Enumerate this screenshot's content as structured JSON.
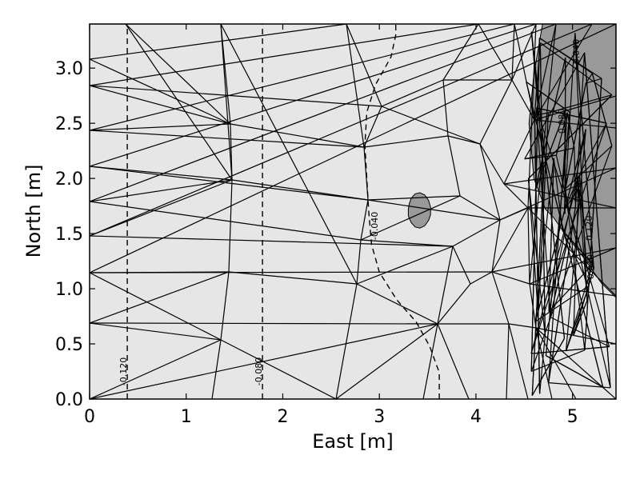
{
  "chart_data": {
    "type": "contour",
    "title": "",
    "xlabel": "East [m]",
    "ylabel": "North [m]",
    "xlim": [
      0,
      5.45
    ],
    "ylim": [
      0,
      3.4
    ],
    "grid": false,
    "x_ticks": [
      0,
      1,
      2,
      3,
      4,
      5
    ],
    "x_tick_labels": [
      "0",
      "1",
      "2",
      "3",
      "4",
      "5"
    ],
    "y_ticks": [
      0.0,
      0.5,
      1.0,
      1.5,
      2.0,
      2.5,
      3.0
    ],
    "y_tick_labels": [
      "0.0",
      "0.5",
      "1.0",
      "1.5",
      "2.0",
      "2.5",
      "3.0"
    ],
    "colors": {
      "background": "#e6e6e6",
      "filled_region": "#999999",
      "mesh": "#000000",
      "contour": "#000000"
    },
    "contours": [
      {
        "label": "-0.120",
        "label_at": [
          0.38,
          0.25
        ],
        "points": [
          [
            0.39,
            0.0
          ],
          [
            0.39,
            3.4
          ]
        ]
      },
      {
        "label": "-0.080",
        "label_at": [
          1.78,
          0.25
        ],
        "points": [
          [
            1.79,
            0.0
          ],
          [
            1.79,
            3.4
          ]
        ]
      },
      {
        "label": "-0.040",
        "label_at": [
          2.98,
          1.57
        ],
        "points": [
          [
            3.62,
            0.0
          ],
          [
            3.62,
            0.24
          ],
          [
            3.52,
            0.48
          ],
          [
            3.38,
            0.7
          ],
          [
            3.18,
            0.9
          ],
          [
            3.0,
            1.15
          ],
          [
            2.92,
            1.4
          ],
          [
            2.89,
            1.7
          ],
          [
            2.87,
            2.0
          ],
          [
            2.85,
            2.3
          ],
          [
            2.87,
            2.6
          ],
          [
            2.96,
            2.85
          ],
          [
            3.12,
            3.1
          ],
          [
            3.17,
            3.3
          ],
          [
            3.17,
            3.4
          ]
        ]
      },
      {
        "label": "0.040",
        "label_at": [
          5.07,
          3.15
        ],
        "points": []
      },
      {
        "label": "0.080",
        "label_at": [
          4.92,
          2.52
        ],
        "points": []
      },
      {
        "label": "0.080",
        "label_at": [
          5.08,
          1.9
        ],
        "points": []
      },
      {
        "label": "0.120",
        "label_at": [
          5.2,
          1.55
        ],
        "points": []
      },
      {
        "label": "0.040",
        "label_at": [
          5.22,
          1.2
        ],
        "points": []
      }
    ],
    "filled_regions": [
      {
        "level": "positive",
        "points": [
          [
            4.69,
            3.4
          ],
          [
            5.45,
            3.4
          ],
          [
            5.45,
            0.92
          ],
          [
            5.3,
            1.05
          ],
          [
            5.1,
            1.3
          ],
          [
            4.92,
            1.5
          ],
          [
            4.8,
            1.65
          ],
          [
            4.72,
            1.72
          ],
          [
            4.6,
            2.0
          ],
          [
            4.55,
            2.5
          ],
          [
            4.6,
            2.95
          ],
          [
            4.69,
            3.4
          ]
        ]
      },
      {
        "level": "positive",
        "points": [
          [
            3.3,
            1.72
          ],
          [
            3.3,
            1.66
          ],
          [
            3.33,
            1.6
          ],
          [
            3.37,
            1.56
          ],
          [
            3.42,
            1.55
          ],
          [
            3.47,
            1.57
          ],
          [
            3.51,
            1.62
          ],
          [
            3.53,
            1.67
          ],
          [
            3.53,
            1.74
          ],
          [
            3.51,
            1.8
          ],
          [
            3.47,
            1.85
          ],
          [
            3.42,
            1.87
          ],
          [
            3.37,
            1.86
          ],
          [
            3.33,
            1.82
          ],
          [
            3.31,
            1.77
          ]
        ]
      }
    ]
  }
}
